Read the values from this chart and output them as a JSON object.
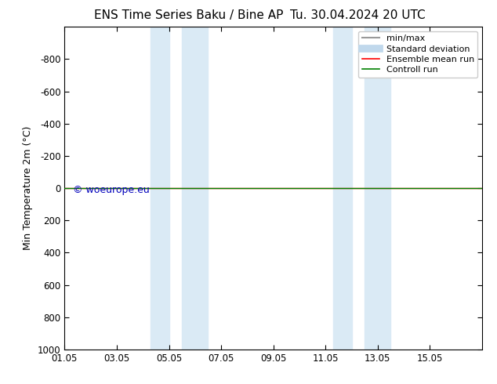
{
  "title": "ENS Time Series Baku / Bine AP",
  "title_date": "Tu. 30.04.2024 20 UTC",
  "ylabel": "Min Temperature 2m (°C)",
  "xlim_min": 0,
  "xlim_max": 16,
  "ylim_top": -1000,
  "ylim_bottom": 1000,
  "yticks": [
    -800,
    -600,
    -400,
    -200,
    0,
    200,
    400,
    600,
    800,
    1000
  ],
  "xtick_labels": [
    "01.05",
    "03.05",
    "05.05",
    "07.05",
    "09.05",
    "11.05",
    "13.05",
    "15.05"
  ],
  "xtick_positions": [
    0,
    2,
    4,
    6,
    8,
    10,
    12,
    14
  ],
  "shaded_regions": [
    [
      3.3,
      4.0
    ],
    [
      4.5,
      5.5
    ],
    [
      10.3,
      11.0
    ],
    [
      11.5,
      12.5
    ]
  ],
  "shaded_color": "#daeaf5",
  "green_line_y": 0,
  "red_line_y": 0,
  "watermark": "© woeurope.eu",
  "watermark_color": "#0000bb",
  "background_color": "#ffffff",
  "plot_bg_color": "#ffffff",
  "border_color": "#000000",
  "legend_items": [
    {
      "label": "min/max",
      "color": "#999999",
      "lw": 1.5
    },
    {
      "label": "Standard deviation",
      "color": "#c0d8ec",
      "lw": 7
    },
    {
      "label": "Ensemble mean run",
      "color": "#ff0000",
      "lw": 1.2
    },
    {
      "label": "Controll run",
      "color": "#008000",
      "lw": 1.2
    }
  ],
  "title_fontsize": 11,
  "axis_fontsize": 9,
  "tick_fontsize": 8.5,
  "legend_fontsize": 8
}
